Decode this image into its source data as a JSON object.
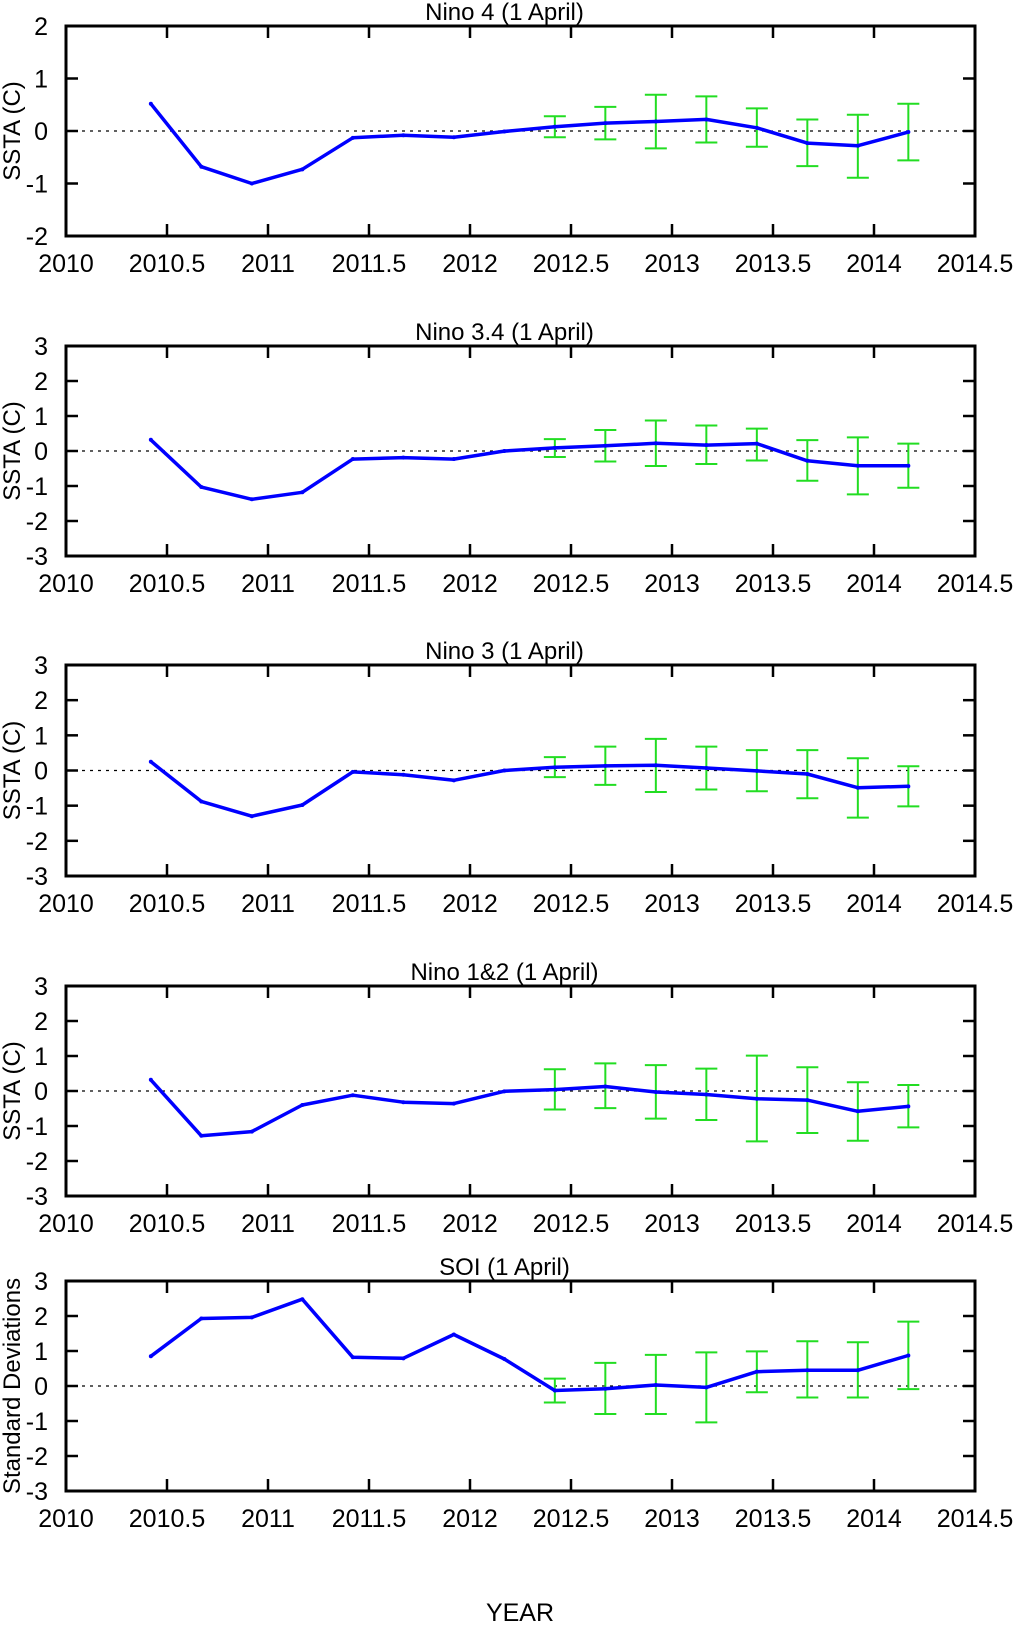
{
  "figure": {
    "xlabel": "YEAR",
    "series_color": "#0000ff",
    "errorbar_color": "#22dd22",
    "zero_line_color": "#000000"
  },
  "chart_data": [
    {
      "type": "line",
      "title": "Nino 4 (1 April)",
      "ylabel": "SSTA (C)",
      "xlabel": "",
      "xlim": [
        2010,
        2014.5
      ],
      "ylim": [
        -2,
        2
      ],
      "xticks": [
        2010,
        2010.5,
        2011,
        2011.5,
        2012,
        2012.5,
        2013,
        2013.5,
        2014,
        2014.5
      ],
      "xtick_labels": [
        "2010",
        "2010.5",
        "2011",
        "2011.5",
        "2012",
        "2012.5",
        "2013",
        "2013.5",
        "2014",
        "2014.5"
      ],
      "yticks": [
        -2,
        -1,
        0,
        1,
        2
      ],
      "ytick_labels": [
        "-2",
        "-1",
        "0",
        "1",
        "2"
      ],
      "zero_line": "dotted",
      "x": [
        2010.42,
        2010.67,
        2010.92,
        2011.17,
        2011.42,
        2011.67,
        2011.92,
        2012.17,
        2012.42,
        2012.67,
        2012.92,
        2013.17,
        2013.42,
        2013.67,
        2013.92,
        2014.17
      ],
      "y": [
        0.52,
        -0.68,
        -1.0,
        -0.73,
        -0.13,
        -0.08,
        -0.12,
        -0.01,
        0.08,
        0.15,
        0.18,
        0.22,
        0.06,
        -0.23,
        -0.28,
        -0.02
      ],
      "errorbars": [
        {
          "x": 2012.42,
          "low": -0.12,
          "high": 0.28
        },
        {
          "x": 2012.67,
          "low": -0.16,
          "high": 0.46
        },
        {
          "x": 2012.92,
          "low": -0.33,
          "high": 0.69
        },
        {
          "x": 2013.17,
          "low": -0.22,
          "high": 0.66
        },
        {
          "x": 2013.42,
          "low": -0.3,
          "high": 0.43
        },
        {
          "x": 2013.67,
          "low": -0.67,
          "high": 0.22
        },
        {
          "x": 2013.92,
          "low": -0.89,
          "high": 0.31
        },
        {
          "x": 2014.17,
          "low": -0.56,
          "high": 0.52
        }
      ]
    },
    {
      "type": "line",
      "title": "Nino 3.4 (1 April)",
      "ylabel": "SSTA (C)",
      "xlabel": "",
      "xlim": [
        2010,
        2014.5
      ],
      "ylim": [
        -3,
        3
      ],
      "xticks": [
        2010,
        2010.5,
        2011,
        2011.5,
        2012,
        2012.5,
        2013,
        2013.5,
        2014,
        2014.5
      ],
      "xtick_labels": [
        "2010",
        "2010.5",
        "2011",
        "2011.5",
        "2012",
        "2012.5",
        "2013",
        "2013.5",
        "2014",
        "2014.5"
      ],
      "yticks": [
        -3,
        -2,
        -1,
        0,
        1,
        2,
        3
      ],
      "ytick_labels": [
        "-3",
        "-2",
        "-1",
        "0",
        "1",
        "2",
        "3"
      ],
      "zero_line": "dotted",
      "x": [
        2010.42,
        2010.67,
        2010.92,
        2011.17,
        2011.42,
        2011.67,
        2011.92,
        2012.17,
        2012.42,
        2012.67,
        2012.92,
        2013.17,
        2013.42,
        2013.67,
        2013.92,
        2014.17
      ],
      "y": [
        0.32,
        -1.03,
        -1.38,
        -1.18,
        -0.23,
        -0.19,
        -0.23,
        0.0,
        0.09,
        0.15,
        0.22,
        0.17,
        0.21,
        -0.28,
        -0.42,
        -0.42
      ],
      "errorbars": [
        {
          "x": 2012.42,
          "low": -0.17,
          "high": 0.34
        },
        {
          "x": 2012.67,
          "low": -0.3,
          "high": 0.6
        },
        {
          "x": 2012.92,
          "low": -0.43,
          "high": 0.87
        },
        {
          "x": 2013.17,
          "low": -0.37,
          "high": 0.73
        },
        {
          "x": 2013.42,
          "low": -0.27,
          "high": 0.64
        },
        {
          "x": 2013.67,
          "low": -0.85,
          "high": 0.31
        },
        {
          "x": 2013.92,
          "low": -1.24,
          "high": 0.39
        },
        {
          "x": 2014.17,
          "low": -1.05,
          "high": 0.21
        }
      ]
    },
    {
      "type": "line",
      "title": "Nino 3 (1 April)",
      "ylabel": "SSTA (C)",
      "xlabel": "",
      "xlim": [
        2010,
        2014.5
      ],
      "ylim": [
        -3,
        3
      ],
      "xticks": [
        2010,
        2010.5,
        2011,
        2011.5,
        2012,
        2012.5,
        2013,
        2013.5,
        2014,
        2014.5
      ],
      "xtick_labels": [
        "2010",
        "2010.5",
        "2011",
        "2011.5",
        "2012",
        "2012.5",
        "2013",
        "2013.5",
        "2014",
        "2014.5"
      ],
      "yticks": [
        -3,
        -2,
        -1,
        0,
        1,
        2,
        3
      ],
      "ytick_labels": [
        "-3",
        "-2",
        "-1",
        "0",
        "1",
        "2",
        "3"
      ],
      "zero_line": "dotted",
      "x": [
        2010.42,
        2010.67,
        2010.92,
        2011.17,
        2011.42,
        2011.67,
        2011.92,
        2012.17,
        2012.42,
        2012.67,
        2012.92,
        2013.17,
        2013.42,
        2013.67,
        2013.92,
        2014.17
      ],
      "y": [
        0.25,
        -0.88,
        -1.3,
        -0.98,
        -0.04,
        -0.12,
        -0.28,
        0.0,
        0.09,
        0.13,
        0.15,
        0.07,
        -0.01,
        -0.1,
        -0.49,
        -0.45
      ],
      "errorbars": [
        {
          "x": 2012.42,
          "low": -0.19,
          "high": 0.38
        },
        {
          "x": 2012.67,
          "low": -0.41,
          "high": 0.68
        },
        {
          "x": 2012.92,
          "low": -0.61,
          "high": 0.9
        },
        {
          "x": 2013.17,
          "low": -0.54,
          "high": 0.68
        },
        {
          "x": 2013.42,
          "low": -0.59,
          "high": 0.58
        },
        {
          "x": 2013.67,
          "low": -0.79,
          "high": 0.58
        },
        {
          "x": 2013.92,
          "low": -1.34,
          "high": 0.35
        },
        {
          "x": 2014.17,
          "low": -1.02,
          "high": 0.12
        }
      ]
    },
    {
      "type": "line",
      "title": "Nino 1&2 (1 April)",
      "ylabel": "SSTA (C)",
      "xlabel": "",
      "xlim": [
        2010,
        2014.5
      ],
      "ylim": [
        -3,
        3
      ],
      "xticks": [
        2010,
        2010.5,
        2011,
        2011.5,
        2012,
        2012.5,
        2013,
        2013.5,
        2014,
        2014.5
      ],
      "xtick_labels": [
        "2010",
        "2010.5",
        "2011",
        "2011.5",
        "2012",
        "2012.5",
        "2013",
        "2013.5",
        "2014",
        "2014.5"
      ],
      "yticks": [
        -3,
        -2,
        -1,
        0,
        1,
        2,
        3
      ],
      "ytick_labels": [
        "-3",
        "-2",
        "-1",
        "0",
        "1",
        "2",
        "3"
      ],
      "zero_line": "dotted",
      "x": [
        2010.42,
        2010.67,
        2010.92,
        2011.17,
        2011.42,
        2011.67,
        2011.92,
        2012.17,
        2012.42,
        2012.67,
        2012.92,
        2013.17,
        2013.42,
        2013.67,
        2013.92,
        2014.17
      ],
      "y": [
        0.32,
        -1.28,
        -1.16,
        -0.4,
        -0.12,
        -0.32,
        -0.36,
        -0.01,
        0.04,
        0.13,
        -0.03,
        -0.1,
        -0.22,
        -0.26,
        -0.58,
        -0.44
      ],
      "errorbars": [
        {
          "x": 2012.42,
          "low": -0.53,
          "high": 0.62
        },
        {
          "x": 2012.67,
          "low": -0.49,
          "high": 0.79
        },
        {
          "x": 2012.92,
          "low": -0.79,
          "high": 0.74
        },
        {
          "x": 2013.17,
          "low": -0.83,
          "high": 0.64
        },
        {
          "x": 2013.42,
          "low": -1.44,
          "high": 1.01
        },
        {
          "x": 2013.67,
          "low": -1.2,
          "high": 0.68
        },
        {
          "x": 2013.92,
          "low": -1.42,
          "high": 0.25
        },
        {
          "x": 2014.17,
          "low": -1.04,
          "high": 0.17
        }
      ]
    },
    {
      "type": "line",
      "title": "SOI (1 April)",
      "ylabel": "Standard Deviations",
      "xlabel": "YEAR",
      "xlim": [
        2010,
        2014.5
      ],
      "ylim": [
        -3,
        3
      ],
      "xticks": [
        2010,
        2010.5,
        2011,
        2011.5,
        2012,
        2012.5,
        2013,
        2013.5,
        2014,
        2014.5
      ],
      "xtick_labels": [
        "2010",
        "2010.5",
        "2011",
        "2011.5",
        "2012",
        "2012.5",
        "2013",
        "2013.5",
        "2014",
        "2014.5"
      ],
      "yticks": [
        -3,
        -2,
        -1,
        0,
        1,
        2,
        3
      ],
      "ytick_labels": [
        "-3",
        "-2",
        "-1",
        "0",
        "1",
        "2",
        "3"
      ],
      "zero_line": "dotted",
      "x": [
        2010.42,
        2010.67,
        2010.92,
        2011.17,
        2011.42,
        2011.67,
        2011.92,
        2012.17,
        2012.42,
        2012.67,
        2012.92,
        2013.17,
        2013.42,
        2013.67,
        2013.92,
        2014.17
      ],
      "y": [
        0.85,
        1.93,
        1.96,
        2.48,
        0.82,
        0.79,
        1.47,
        0.77,
        -0.13,
        -0.08,
        0.03,
        -0.04,
        0.41,
        0.45,
        0.45,
        0.87
      ],
      "errorbars": [
        {
          "x": 2012.42,
          "low": -0.47,
          "high": 0.21
        },
        {
          "x": 2012.67,
          "low": -0.8,
          "high": 0.66
        },
        {
          "x": 2012.92,
          "low": -0.8,
          "high": 0.89
        },
        {
          "x": 2013.17,
          "low": -1.04,
          "high": 0.96
        },
        {
          "x": 2013.42,
          "low": -0.18,
          "high": 0.99
        },
        {
          "x": 2013.67,
          "low": -0.33,
          "high": 1.28
        },
        {
          "x": 2013.92,
          "low": -0.33,
          "high": 1.25
        },
        {
          "x": 2014.17,
          "low": -0.09,
          "high": 1.84
        }
      ]
    }
  ]
}
